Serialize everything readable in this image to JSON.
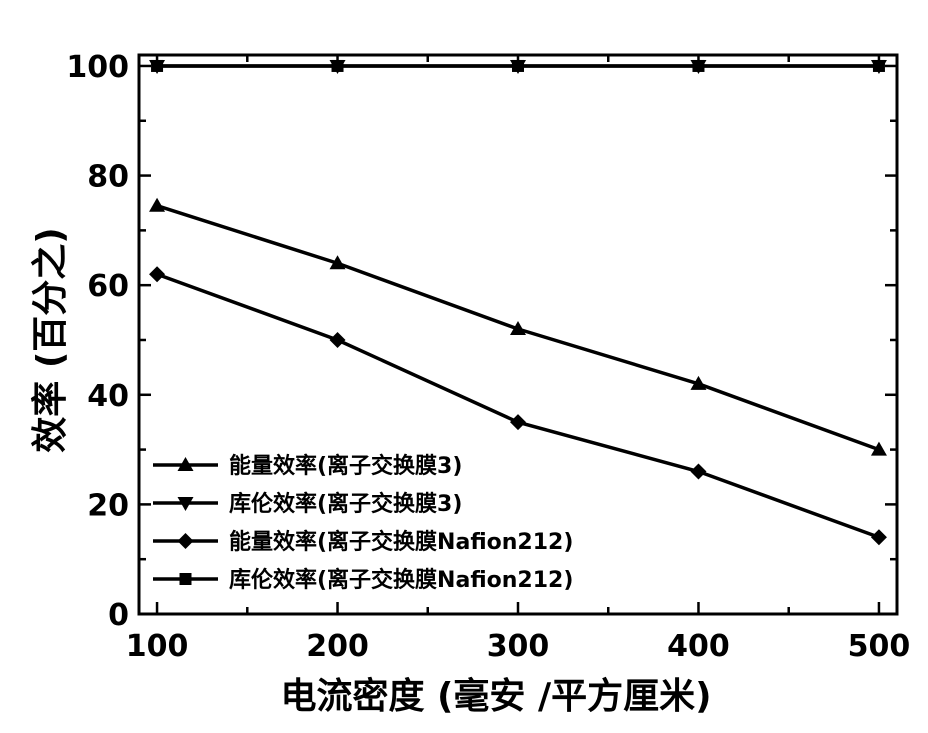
{
  "chart_data": {
    "type": "line",
    "xlabel": "电流密度 (毫安 /平方厘米)",
    "ylabel": "效率 (百分之)",
    "x": [
      100,
      200,
      300,
      400,
      500
    ],
    "xlim": [
      90,
      510
    ],
    "ylim": [
      0,
      102
    ],
    "xticks": [
      "100",
      "200",
      "300",
      "400",
      "500"
    ],
    "yticks": [
      "0",
      "20",
      "40",
      "60",
      "80",
      "100"
    ],
    "grid": false,
    "legend_position": "bottom-left",
    "series": [
      {
        "name": "能量效率(离子交换膜3)",
        "marker": "triangle-up",
        "values": [
          74.5,
          64,
          52,
          42,
          30
        ]
      },
      {
        "name": "库伦效率(离子交换膜3)",
        "marker": "triangle-down",
        "values": [
          100,
          100,
          100,
          100,
          100
        ]
      },
      {
        "name": "能量效率(离子交换膜Nafion212)",
        "marker": "diamond",
        "values": [
          62,
          50,
          35,
          26,
          14
        ]
      },
      {
        "name": "库伦效率(离子交换膜Nafion212)",
        "marker": "square",
        "values": [
          100,
          100,
          100,
          100,
          100
        ]
      }
    ],
    "line_color": "#000000"
  }
}
